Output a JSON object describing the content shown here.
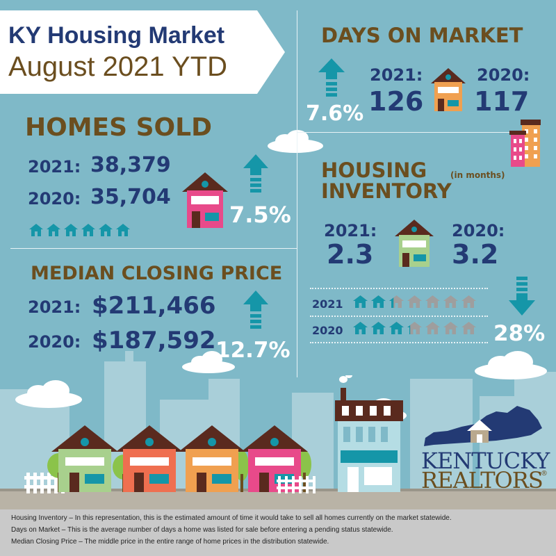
{
  "title": {
    "line1": "KY Housing Market",
    "line2": "August 2021 YTD"
  },
  "homes_sold": {
    "heading": "HOMES SOLD",
    "label_2021": "2021:",
    "value_2021": "38,379",
    "label_2020": "2020:",
    "value_2020": "35,704",
    "change": "7.5%",
    "direction": "up"
  },
  "median_price": {
    "heading": "MEDIAN CLOSING PRICE",
    "label_2021": "2021:",
    "value_2021": "$211,466",
    "label_2020": "2020:",
    "value_2020": "$187,592",
    "change": "12.7%",
    "direction": "up"
  },
  "days_on_market": {
    "heading": "DAYS ON MARKET",
    "label_2021": "2021:",
    "value_2021": "126",
    "label_2020": "2020:",
    "value_2020": "117",
    "change": "7.6%",
    "direction": "up"
  },
  "inventory": {
    "heading_line1": "HOUSING",
    "heading_line2": "INVENTORY",
    "unit": "(in months)",
    "label_2021": "2021:",
    "value_2021": "2.3",
    "label_2020": "2020:",
    "value_2020": "3.2",
    "row_2021_label": "2021",
    "row_2020_label": "2020",
    "row_2021_level": 2.3,
    "row_2020_level": 3.2,
    "row_total": 7,
    "change": "28%",
    "direction": "down"
  },
  "logo": {
    "line1": "KENTUCKY",
    "line2": "REALTORS",
    "mark": "®"
  },
  "legend": [
    "Housing Inventory – In this representation, this is the estimated amount of time it would take to sell all homes currently on the market statewide.",
    "Days on Market – This is the average number of days a home was listed for sale before entering a pending status statewide.",
    "Median Closing Price – The middle price in the entire range of home prices in the distribution statewide."
  ],
  "colors": {
    "background": "#7fb9c8",
    "navy": "#233a74",
    "brown": "#6b4e1f",
    "arrow": "#1596a8",
    "pink_house": "#e84a8a",
    "orange_house": "#f0a050",
    "green_house": "#a8d08d",
    "coral_house": "#ef6f50"
  }
}
